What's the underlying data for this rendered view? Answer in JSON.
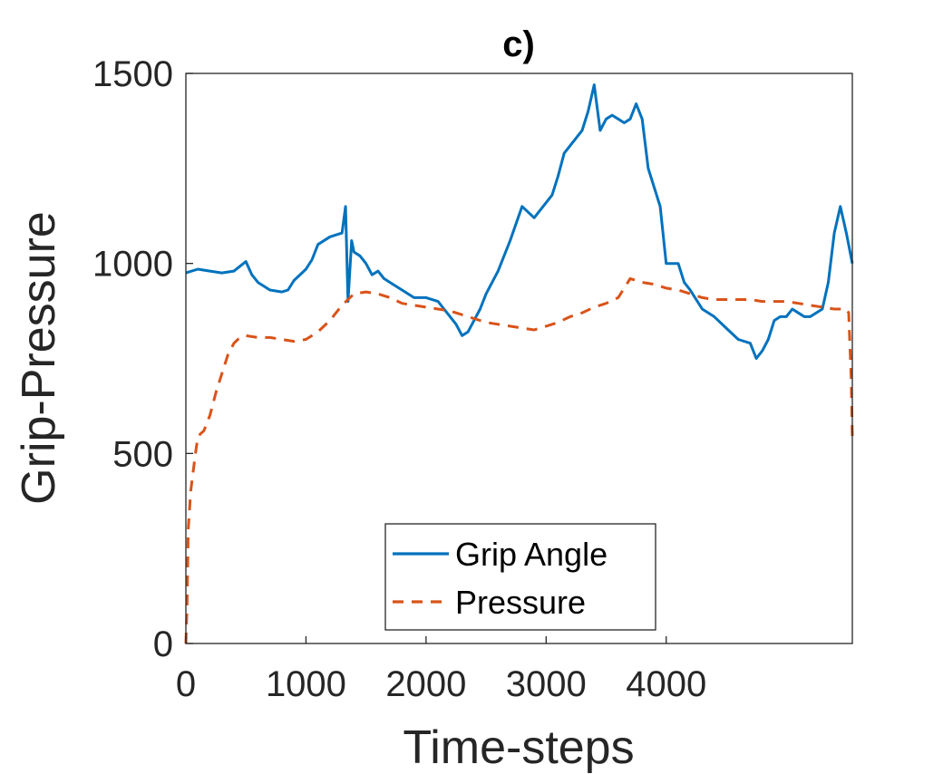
{
  "chart_data": {
    "type": "line",
    "title": "c)",
    "xlabel": "Time-steps",
    "ylabel": "Grip-Pressure",
    "xlim": [
      0,
      5550
    ],
    "ylim": [
      0,
      1500
    ],
    "xticks": [
      0,
      1000,
      2000,
      3000,
      4000
    ],
    "yticks": [
      0,
      500,
      1000,
      1500
    ],
    "grid": false,
    "legend_position": "bottom-center",
    "series": [
      {
        "name": "Grip Angle",
        "color": "#0072BD",
        "style": "solid",
        "x": [
          0,
          100,
          200,
          300,
          400,
          500,
          550,
          600,
          700,
          800,
          850,
          900,
          1000,
          1050,
          1100,
          1200,
          1300,
          1330,
          1350,
          1380,
          1400,
          1450,
          1500,
          1550,
          1600,
          1650,
          1700,
          1800,
          1900,
          2000,
          2100,
          2150,
          2200,
          2250,
          2300,
          2350,
          2400,
          2450,
          2500,
          2600,
          2700,
          2800,
          2900,
          3000,
          3050,
          3100,
          3150,
          3200,
          3250,
          3300,
          3350,
          3400,
          3450,
          3500,
          3550,
          3600,
          3650,
          3700,
          3750,
          3800,
          3850,
          3900,
          3950,
          4000,
          4050,
          4100,
          4150,
          4200,
          4300,
          4400,
          4500,
          4600,
          4700,
          4750,
          4800,
          4850,
          4900,
          4950,
          5000,
          5050,
          5100,
          5150,
          5200,
          5300,
          5350,
          5400,
          5450,
          5500,
          5550
        ],
        "y": [
          975,
          985,
          980,
          975,
          980,
          1005,
          970,
          950,
          930,
          925,
          930,
          955,
          985,
          1010,
          1050,
          1070,
          1080,
          1150,
          900,
          1060,
          1030,
          1020,
          1000,
          970,
          980,
          960,
          950,
          930,
          910,
          910,
          900,
          880,
          860,
          840,
          810,
          820,
          850,
          880,
          920,
          980,
          1060,
          1150,
          1120,
          1160,
          1180,
          1230,
          1290,
          1310,
          1330,
          1350,
          1400,
          1470,
          1350,
          1380,
          1390,
          1380,
          1370,
          1380,
          1420,
          1380,
          1250,
          1200,
          1150,
          1000,
          1000,
          1000,
          950,
          930,
          880,
          860,
          830,
          800,
          790,
          750,
          770,
          800,
          850,
          860,
          860,
          880,
          870,
          860,
          860,
          880,
          950,
          1080,
          1150,
          1080,
          1000
        ]
      },
      {
        "name": "Pressure",
        "color": "#D95319",
        "style": "dashed",
        "x": [
          0,
          10,
          20,
          40,
          60,
          80,
          100,
          150,
          200,
          250,
          300,
          350,
          400,
          450,
          500,
          600,
          700,
          800,
          900,
          1000,
          1100,
          1200,
          1300,
          1400,
          1500,
          1600,
          1700,
          1800,
          1900,
          2000,
          2100,
          2200,
          2300,
          2400,
          2500,
          2600,
          2700,
          2800,
          2900,
          3000,
          3100,
          3200,
          3300,
          3400,
          3500,
          3600,
          3700,
          3800,
          3900,
          4000,
          4100,
          4200,
          4300,
          4400,
          4500,
          4600,
          4700,
          4800,
          4900,
          5000,
          5100,
          5200,
          5300,
          5400,
          5500,
          5520,
          5540,
          5550
        ],
        "y": [
          0,
          100,
          300,
          400,
          450,
          500,
          545,
          560,
          600,
          660,
          710,
          760,
          790,
          805,
          810,
          805,
          805,
          800,
          795,
          800,
          820,
          850,
          890,
          920,
          925,
          920,
          910,
          895,
          890,
          885,
          880,
          875,
          865,
          855,
          845,
          840,
          835,
          830,
          825,
          835,
          845,
          860,
          870,
          885,
          895,
          910,
          960,
          950,
          945,
          935,
          930,
          920,
          910,
          905,
          905,
          905,
          905,
          900,
          900,
          900,
          895,
          890,
          885,
          880,
          880,
          870,
          700,
          545
        ]
      }
    ]
  }
}
